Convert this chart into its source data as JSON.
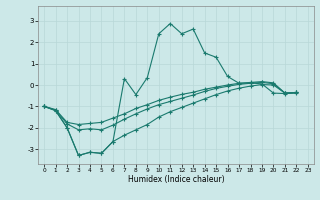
{
  "xlabel": "Humidex (Indice chaleur)",
  "background_color": "#cce8e8",
  "grid_color": "#b8d8d8",
  "line_color": "#1a7a6e",
  "xlim": [
    -0.5,
    23.5
  ],
  "ylim": [
    -3.7,
    3.7
  ],
  "xticks": [
    0,
    1,
    2,
    3,
    4,
    5,
    6,
    7,
    8,
    9,
    10,
    11,
    12,
    13,
    14,
    15,
    16,
    17,
    18,
    19,
    20,
    21,
    22,
    23
  ],
  "yticks": [
    -3,
    -2,
    -1,
    0,
    1,
    2,
    3
  ],
  "line1_x": [
    0,
    1,
    2,
    3,
    4,
    5,
    6,
    7,
    8,
    9,
    10,
    11,
    12,
    13,
    14,
    15,
    16,
    17,
    18,
    19,
    20,
    21,
    22
  ],
  "line1_y": [
    -1.0,
    -1.2,
    -2.0,
    -3.3,
    -3.15,
    -3.2,
    -2.65,
    0.3,
    -0.45,
    0.35,
    2.4,
    2.88,
    2.4,
    2.62,
    1.5,
    1.3,
    0.4,
    0.08,
    0.1,
    0.05,
    -0.38,
    -0.4,
    -0.38
  ],
  "line2_x": [
    0,
    1,
    2,
    3,
    4,
    5,
    6,
    7,
    8,
    9,
    10,
    11,
    12,
    13,
    14,
    15,
    16,
    17,
    18,
    19,
    20,
    21,
    22
  ],
  "line2_y": [
    -1.0,
    -1.15,
    -1.75,
    -1.85,
    -1.8,
    -1.75,
    -1.55,
    -1.35,
    -1.1,
    -0.92,
    -0.72,
    -0.57,
    -0.44,
    -0.34,
    -0.2,
    -0.1,
    0.0,
    0.08,
    0.12,
    0.16,
    0.1,
    -0.38,
    -0.35
  ],
  "line3_x": [
    0,
    1,
    2,
    3,
    4,
    5,
    6,
    7,
    8,
    9,
    10,
    11,
    12,
    13,
    14,
    15,
    16,
    17,
    18,
    19,
    20,
    21,
    22
  ],
  "line3_y": [
    -1.0,
    -1.18,
    -1.82,
    -2.1,
    -2.05,
    -2.1,
    -1.88,
    -1.6,
    -1.35,
    -1.12,
    -0.92,
    -0.77,
    -0.62,
    -0.47,
    -0.3,
    -0.16,
    -0.06,
    0.03,
    0.08,
    0.12,
    0.06,
    -0.38,
    -0.35
  ],
  "line4_x": [
    0,
    1,
    2,
    3,
    4,
    5,
    6,
    7,
    8,
    9,
    10,
    11,
    12,
    13,
    14,
    15,
    16,
    17,
    18,
    19,
    20,
    21,
    22
  ],
  "line4_y": [
    -1.0,
    -1.2,
    -2.0,
    -3.3,
    -3.15,
    -3.2,
    -2.65,
    -2.35,
    -2.1,
    -1.85,
    -1.5,
    -1.25,
    -1.05,
    -0.85,
    -0.65,
    -0.45,
    -0.28,
    -0.15,
    -0.05,
    0.02,
    0.0,
    -0.38,
    -0.35
  ]
}
